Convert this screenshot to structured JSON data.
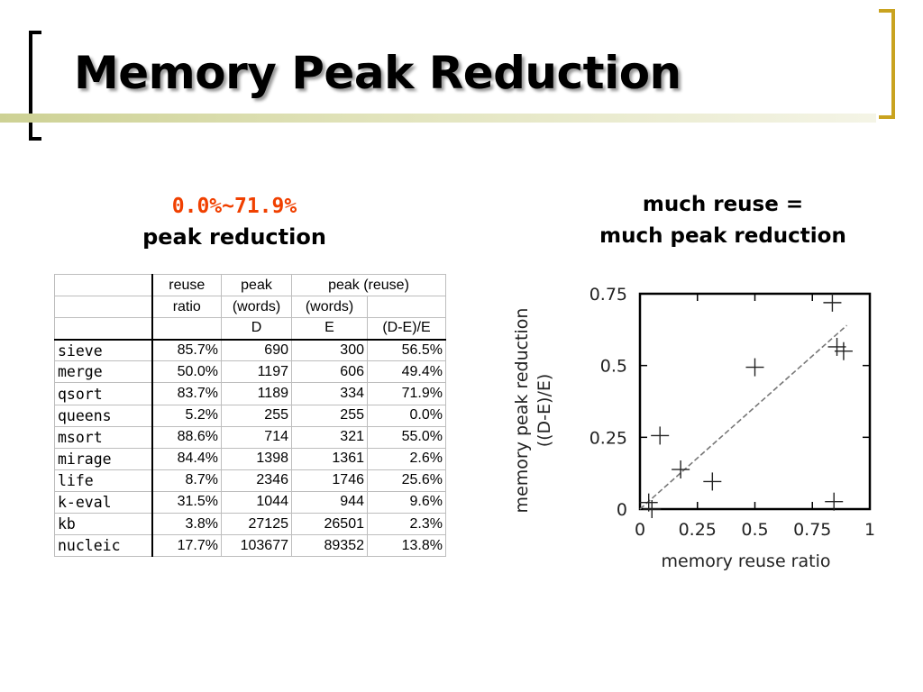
{
  "slide": {
    "title": "Memory Peak Reduction",
    "left_caption": {
      "highlight": "0.0%~71.9%",
      "text": "peak reduction"
    },
    "right_caption": {
      "line1": "much reuse =",
      "line2": "much peak reduction"
    }
  },
  "table": {
    "header_rows": [
      [
        "",
        "reuse",
        "peak",
        "peak (reuse)",
        ""
      ],
      [
        "",
        "ratio",
        "(words)",
        "(words)",
        ""
      ],
      [
        "",
        "",
        "D",
        "E",
        "(D-E)/E"
      ]
    ],
    "rows": [
      [
        "sieve",
        "85.7%",
        "690",
        "300",
        "56.5%"
      ],
      [
        "merge",
        "50.0%",
        "1197",
        "606",
        "49.4%"
      ],
      [
        "qsort",
        "83.7%",
        "1189",
        "334",
        "71.9%"
      ],
      [
        "queens",
        "5.2%",
        "255",
        "255",
        "0.0%"
      ],
      [
        "msort",
        "88.6%",
        "714",
        "321",
        "55.0%"
      ],
      [
        "mirage",
        "84.4%",
        "1398",
        "1361",
        "2.6%"
      ],
      [
        "life",
        "8.7%",
        "2346",
        "1746",
        "25.6%"
      ],
      [
        "k-eval",
        "31.5%",
        "1044",
        "944",
        "9.6%"
      ],
      [
        "kb",
        "3.8%",
        "27125",
        "26501",
        "2.3%"
      ],
      [
        "nucleic",
        "17.7%",
        "103677",
        "89352",
        "13.8%"
      ]
    ]
  },
  "chart_data": {
    "type": "scatter",
    "title": "",
    "xlabel": "memory reuse ratio",
    "ylabel": "memory peak reduction",
    "ylabel_line2": "((D-E)/E)",
    "xlim": [
      0,
      1
    ],
    "ylim": [
      0,
      0.75
    ],
    "x_ticks": [
      "0",
      "0.25",
      "0.5",
      "0.75",
      "1"
    ],
    "y_ticks": [
      "0",
      "0.25",
      "0.5",
      "0.75"
    ],
    "marker": "plus",
    "points": [
      {
        "x": 0.857,
        "y": 0.565
      },
      {
        "x": 0.5,
        "y": 0.494
      },
      {
        "x": 0.837,
        "y": 0.719
      },
      {
        "x": 0.052,
        "y": 0.0
      },
      {
        "x": 0.886,
        "y": 0.55
      },
      {
        "x": 0.844,
        "y": 0.026
      },
      {
        "x": 0.087,
        "y": 0.256
      },
      {
        "x": 0.315,
        "y": 0.096
      },
      {
        "x": 0.038,
        "y": 0.023
      },
      {
        "x": 0.177,
        "y": 0.138
      }
    ],
    "trend_line": {
      "style": "dashed",
      "from": {
        "x": 0.0,
        "y": 0.0
      },
      "to": {
        "x": 0.9,
        "y": 0.64
      }
    },
    "grid": false,
    "legend": "none"
  }
}
